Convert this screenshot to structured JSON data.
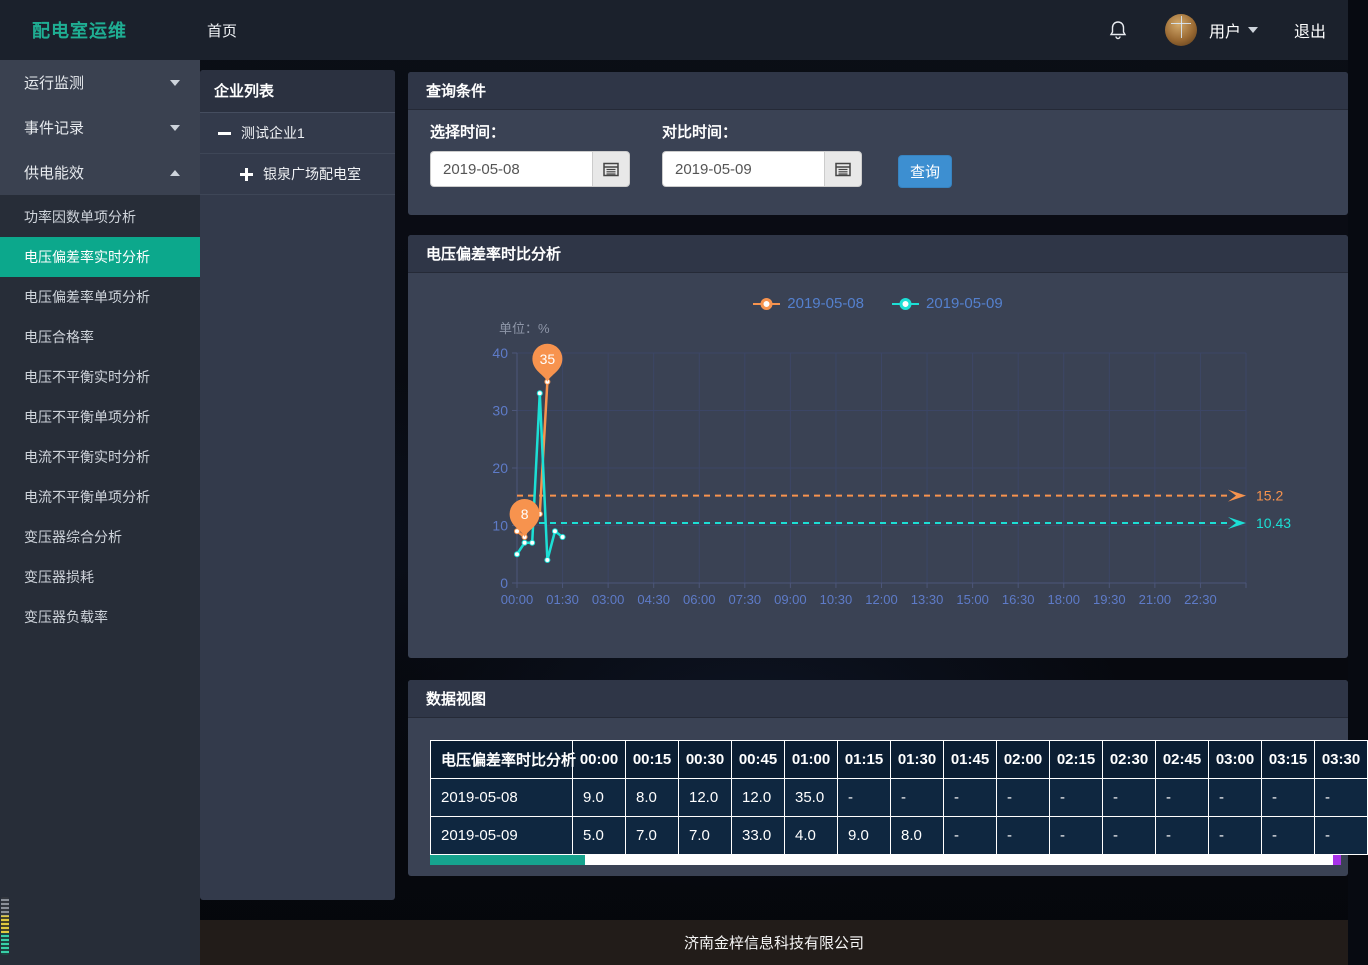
{
  "navbar": {
    "brand": "配电室运维",
    "home": "首页",
    "user": "用户",
    "logout": "退出"
  },
  "sidebar": {
    "groups": [
      {
        "label": "运行监测",
        "expanded": false
      },
      {
        "label": "事件记录",
        "expanded": false
      },
      {
        "label": "供电能效",
        "expanded": true
      }
    ],
    "submenu": [
      "功率因数单项分析",
      "电压偏差率实时分析",
      "电压偏差率单项分析",
      "电压合格率",
      "电压不平衡实时分析",
      "电压不平衡单项分析",
      "电流不平衡实时分析",
      "电流不平衡单项分析",
      "变压器综合分析",
      "变压器损耗",
      "变压器负载率"
    ],
    "active_item": "电压偏差率实时分析"
  },
  "enterprise": {
    "title": "企业列表",
    "node": "测试企业1",
    "child": "银泉广场配电室"
  },
  "query": {
    "title": "查询条件",
    "select_label": "选择时间：",
    "select_value": "2019-05-08",
    "compare_label": "对比时间：",
    "compare_value": "2019-05-09",
    "button": "查询"
  },
  "chart_panel": {
    "title": "电压偏差率时比分析"
  },
  "chart_data": {
    "type": "line",
    "title": "电压偏差率时比分析",
    "unit_label": "单位：%",
    "legend": [
      "2019-05-08",
      "2019-05-09"
    ],
    "legend_position": "top-center",
    "grid": true,
    "x_interval_minutes": 15,
    "x_tick_labels": [
      "00:00",
      "01:30",
      "03:00",
      "04:30",
      "06:00",
      "07:30",
      "09:00",
      "10:30",
      "12:00",
      "13:30",
      "15:00",
      "16:30",
      "18:00",
      "19:30",
      "21:00",
      "22:30"
    ],
    "ylim": [
      0,
      40
    ],
    "y_ticks": [
      0,
      10,
      20,
      30,
      40
    ],
    "series": [
      {
        "name": "2019-05-08",
        "color": "#f7934e",
        "x": [
          "00:00",
          "00:15",
          "00:30",
          "00:45",
          "01:00"
        ],
        "values": [
          9.0,
          8.0,
          12.0,
          12.0,
          35.0
        ],
        "avg_line": 15.2,
        "avg_label": "15.2",
        "mark_max": {
          "x": "01:00",
          "value": 35,
          "label": "35"
        },
        "mark_min": {
          "x": "00:15",
          "value": 8,
          "label": "8"
        }
      },
      {
        "name": "2019-05-09",
        "color": "#1cdfd5",
        "x": [
          "00:00",
          "00:15",
          "00:30",
          "00:45",
          "01:00",
          "01:15",
          "01:30"
        ],
        "values": [
          5.0,
          7.0,
          7.0,
          33.0,
          4.0,
          9.0,
          8.0
        ],
        "avg_line": 10.43,
        "avg_label": "10.43"
      }
    ]
  },
  "data_panel": {
    "title": "数据视图",
    "table": {
      "first_col_header": "电压偏差率时比分析",
      "time_columns": [
        "00:00",
        "00:15",
        "00:30",
        "00:45",
        "01:00",
        "01:15",
        "01:30",
        "01:45",
        "02:00",
        "02:15",
        "02:30",
        "02:45",
        "03:00",
        "03:15",
        "03:30"
      ],
      "rows": [
        {
          "label": "2019-05-08",
          "values": [
            "9.0",
            "8.0",
            "12.0",
            "12.0",
            "35.0",
            "-",
            "-",
            "-",
            "-",
            "-",
            "-",
            "-",
            "-",
            "-",
            "-"
          ]
        },
        {
          "label": "2019-05-09",
          "values": [
            "5.0",
            "7.0",
            "7.0",
            "33.0",
            "4.0",
            "9.0",
            "8.0",
            "-",
            "-",
            "-",
            "-",
            "-",
            "-",
            "-",
            "-"
          ]
        }
      ]
    }
  },
  "footer": {
    "company": "济南金梓信息科技有限公司"
  },
  "colors": {
    "brand_teal": "#1fae93",
    "active_menu_teal": "#0ca88c",
    "query_button_blue": "#3d8fd1",
    "series_orange": "#f7934e",
    "series_cyan": "#1cdfd5",
    "legend_text_blue": "#5480ce",
    "axis_label_blue": "#5e7bc8",
    "table_cell_navy": "#0f2740",
    "scrollbar_teal": "#16a38e",
    "scrollbar_purple": "#a832e8"
  },
  "icons": {
    "bell": "outline-bell",
    "calendar": "calendar-grid",
    "avatar": "user-photo",
    "chevron_down": "triangle-down",
    "chevron_up": "triangle-up",
    "collapse": "minus",
    "expand": "plus"
  }
}
